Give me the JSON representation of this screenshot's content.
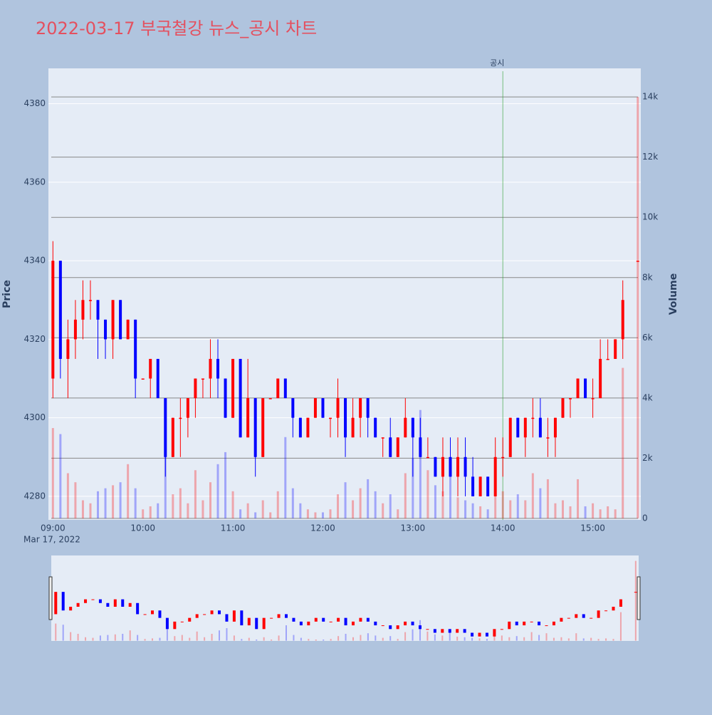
{
  "chart_data": {
    "type": "candlestick",
    "title": "2022-03-17 부국철강 뉴스_공시 차트",
    "title_color": "#e4505f",
    "y_label": "Price",
    "y2_label": "Volume",
    "date_label": "Mar 17, 2022",
    "increasing_color": "#ff0000",
    "decreasing_color": "#0000ff",
    "volume_opacity": 0.3,
    "annotation": {
      "x": "14:00",
      "text": "공시",
      "color": "#2ca02c"
    },
    "xlim": [
      "08:57",
      "15:32"
    ],
    "xticks": [
      "09:00",
      "10:00",
      "11:00",
      "12:00",
      "13:00",
      "14:00",
      "15:00"
    ],
    "ylim": [
      4274,
      4389
    ],
    "yticks": [
      4280,
      4300,
      4320,
      4340,
      4360,
      4380
    ],
    "y2lim": [
      -50,
      14950
    ],
    "y2ticks": [
      0,
      {
        "value": 2000,
        "label": "2k"
      },
      {
        "value": 4000,
        "label": "4k"
      },
      {
        "value": 6000,
        "label": "6k"
      },
      {
        "value": 8000,
        "label": "8k"
      },
      {
        "value": 10000,
        "label": "10k"
      },
      {
        "value": 12000,
        "label": "12k"
      },
      {
        "value": 14000,
        "label": "14k"
      }
    ],
    "x": [
      "09:00",
      "09:05",
      "09:10",
      "09:15",
      "09:20",
      "09:25",
      "09:30",
      "09:35",
      "09:40",
      "09:45",
      "09:50",
      "09:55",
      "10:00",
      "10:05",
      "10:10",
      "10:15",
      "10:20",
      "10:25",
      "10:30",
      "10:35",
      "10:40",
      "10:45",
      "10:50",
      "10:55",
      "11:00",
      "11:05",
      "11:10",
      "11:15",
      "11:20",
      "11:25",
      "11:30",
      "11:35",
      "11:40",
      "11:45",
      "11:50",
      "11:55",
      "12:00",
      "12:05",
      "12:10",
      "12:15",
      "12:20",
      "12:25",
      "12:30",
      "12:35",
      "12:40",
      "12:45",
      "12:50",
      "12:55",
      "13:00",
      "13:05",
      "13:10",
      "13:15",
      "13:20",
      "13:25",
      "13:30",
      "13:35",
      "13:40",
      "13:45",
      "13:50",
      "13:55",
      "14:00",
      "14:05",
      "14:10",
      "14:15",
      "14:20",
      "14:25",
      "14:30",
      "14:35",
      "14:40",
      "14:45",
      "14:50",
      "14:55",
      "15:00",
      "15:05",
      "15:10",
      "15:15",
      "15:20",
      "15:30"
    ],
    "open": [
      4310,
      4340,
      4315,
      4320,
      4325,
      4330,
      4330,
      4325,
      4320,
      4330,
      4320,
      4325,
      4310,
      4310,
      4315,
      4305,
      4290,
      4300,
      4300,
      4305,
      4310,
      4310,
      4315,
      4310,
      4300,
      4315,
      4295,
      4305,
      4290,
      4305,
      4305,
      4310,
      4305,
      4300,
      4295,
      4300,
      4305,
      4300,
      4300,
      4305,
      4295,
      4300,
      4305,
      4300,
      4295,
      4295,
      4290,
      4295,
      4300,
      4295,
      4290,
      4290,
      4285,
      4290,
      4285,
      4290,
      4285,
      4280,
      4285,
      4280,
      4290,
      4290,
      4300,
      4295,
      4300,
      4300,
      4295,
      4295,
      4300,
      4305,
      4305,
      4310,
      4305,
      4305,
      4315,
      4315,
      4320,
      4340
    ],
    "high": [
      4345,
      4340,
      4325,
      4330,
      4335,
      4335,
      4330,
      4325,
      4330,
      4330,
      4325,
      4325,
      4310,
      4315,
      4315,
      4305,
      4300,
      4305,
      4305,
      4310,
      4310,
      4320,
      4320,
      4310,
      4315,
      4315,
      4315,
      4305,
      4305,
      4305,
      4310,
      4310,
      4305,
      4300,
      4300,
      4305,
      4305,
      4300,
      4310,
      4305,
      4305,
      4305,
      4305,
      4300,
      4295,
      4300,
      4295,
      4305,
      4300,
      4300,
      4295,
      4290,
      4295,
      4295,
      4295,
      4295,
      4290,
      4285,
      4285,
      4295,
      4295,
      4300,
      4300,
      4300,
      4305,
      4305,
      4300,
      4300,
      4305,
      4305,
      4310,
      4310,
      4310,
      4320,
      4320,
      4320,
      4335,
      4340
    ],
    "low": [
      4305,
      4310,
      4305,
      4315,
      4320,
      4325,
      4315,
      4315,
      4315,
      4320,
      4320,
      4305,
      4310,
      4305,
      4305,
      4285,
      4290,
      4290,
      4295,
      4300,
      4305,
      4305,
      4305,
      4300,
      4300,
      4295,
      4295,
      4285,
      4290,
      4305,
      4305,
      4305,
      4295,
      4295,
      4295,
      4300,
      4300,
      4295,
      4295,
      4290,
      4295,
      4295,
      4295,
      4295,
      4290,
      4290,
      4290,
      4295,
      4285,
      4290,
      4290,
      4285,
      4280,
      4285,
      4280,
      4280,
      4280,
      4280,
      4280,
      4280,
      4285,
      4290,
      4295,
      4290,
      4295,
      4295,
      4290,
      4290,
      4300,
      4300,
      4305,
      4305,
      4300,
      4305,
      4315,
      4315,
      4315,
      4340
    ],
    "close": [
      4340,
      4315,
      4320,
      4325,
      4330,
      4330,
      4325,
      4320,
      4330,
      4320,
      4325,
      4310,
      4310,
      4315,
      4305,
      4290,
      4300,
      4300,
      4305,
      4310,
      4310,
      4315,
      4310,
      4300,
      4315,
      4295,
      4305,
      4290,
      4305,
      4305,
      4310,
      4305,
      4300,
      4295,
      4300,
      4305,
      4300,
      4300,
      4305,
      4295,
      4300,
      4305,
      4300,
      4295,
      4295,
      4290,
      4295,
      4300,
      4295,
      4290,
      4290,
      4285,
      4290,
      4285,
      4290,
      4285,
      4280,
      4285,
      4280,
      4290,
      4290,
      4300,
      4295,
      4300,
      4300,
      4295,
      4295,
      4300,
      4305,
      4305,
      4310,
      4305,
      4305,
      4315,
      4315,
      4320,
      4330,
      4340
    ],
    "volume": [
      3000,
      2800,
      1500,
      1200,
      600,
      500,
      900,
      1000,
      1100,
      1200,
      1800,
      1000,
      300,
      400,
      500,
      2500,
      800,
      1000,
      500,
      1600,
      600,
      1200,
      1800,
      2200,
      900,
      300,
      500,
      200,
      600,
      200,
      900,
      2700,
      1000,
      500,
      300,
      200,
      200,
      300,
      800,
      1200,
      600,
      1000,
      1300,
      900,
      500,
      800,
      300,
      1500,
      2000,
      3600,
      1600,
      1100,
      900,
      1400,
      700,
      600,
      500,
      400,
      300,
      1200,
      900,
      600,
      800,
      600,
      1500,
      1000,
      1300,
      500,
      600,
      400,
      1300,
      400,
      500,
      300,
      400,
      300,
      5000,
      14000
    ]
  }
}
